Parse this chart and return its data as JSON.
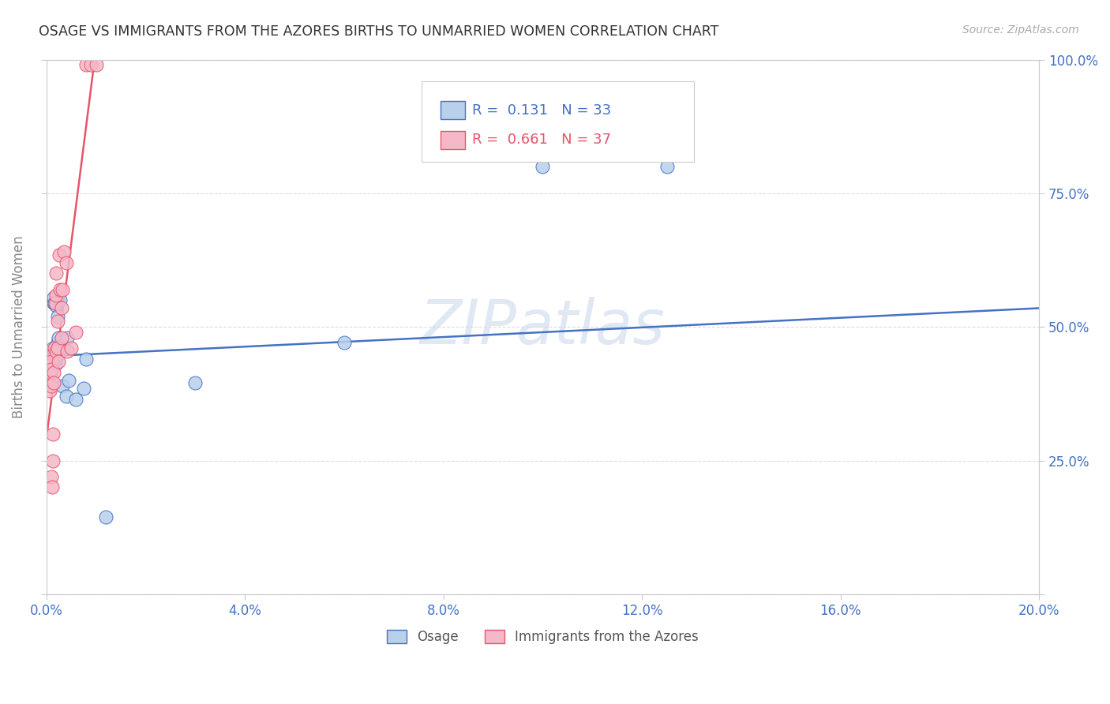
{
  "title": "OSAGE VS IMMIGRANTS FROM THE AZORES BIRTHS TO UNMARRIED WOMEN CORRELATION CHART",
  "source": "Source: ZipAtlas.com",
  "ylabel": "Births to Unmarried Women",
  "xlim": [
    0.0,
    0.2
  ],
  "ylim": [
    0.0,
    1.0
  ],
  "xticks": [
    0.0,
    0.04,
    0.08,
    0.12,
    0.16,
    0.2
  ],
  "yticks": [
    0.0,
    0.25,
    0.5,
    0.75,
    1.0
  ],
  "xticklabels": [
    "0.0%",
    "4.0%",
    "8.0%",
    "12.0%",
    "16.0%",
    "20.0%"
  ],
  "yticklabels": [
    "",
    "25.0%",
    "50.0%",
    "75.0%",
    "100.0%"
  ],
  "background_color": "#ffffff",
  "watermark": "ZIPatlas",
  "series": [
    {
      "name": "Osage",
      "R": 0.131,
      "N": 33,
      "marker_color": "#b8d0ea",
      "edge_color": "#4472c4",
      "line_color": "#4472c4",
      "x": [
        0.0008,
        0.0008,
        0.001,
        0.001,
        0.0012,
        0.0012,
        0.0014,
        0.0014,
        0.0015,
        0.0015,
        0.0016,
        0.0018,
        0.0018,
        0.002,
        0.0022,
        0.0022,
        0.0025,
        0.0025,
        0.0028,
        0.003,
        0.0032,
        0.0035,
        0.004,
        0.0042,
        0.0045,
        0.006,
        0.0075,
        0.008,
        0.012,
        0.03,
        0.06,
        0.1,
        0.125
      ],
      "y": [
        0.415,
        0.425,
        0.43,
        0.445,
        0.43,
        0.44,
        0.46,
        0.44,
        0.545,
        0.555,
        0.545,
        0.43,
        0.44,
        0.54,
        0.52,
        0.47,
        0.48,
        0.45,
        0.55,
        0.465,
        0.39,
        0.46,
        0.37,
        0.48,
        0.4,
        0.365,
        0.385,
        0.44,
        0.145,
        0.395,
        0.47,
        0.8,
        0.8
      ],
      "trend_x": [
        0.0,
        0.2
      ],
      "trend_y": [
        0.445,
        0.535
      ]
    },
    {
      "name": "Immigrants from the Azores",
      "R": 0.661,
      "N": 37,
      "marker_color": "#f4b8c8",
      "edge_color": "#e8546a",
      "line_color": "#e8546a",
      "x": [
        0.0005,
        0.0006,
        0.0007,
        0.0008,
        0.0008,
        0.0009,
        0.001,
        0.001,
        0.001,
        0.001,
        0.001,
        0.0012,
        0.0013,
        0.0014,
        0.0015,
        0.0015,
        0.0016,
        0.0018,
        0.0019,
        0.002,
        0.002,
        0.0022,
        0.0022,
        0.0025,
        0.0026,
        0.0028,
        0.003,
        0.003,
        0.0033,
        0.0035,
        0.004,
        0.0042,
        0.005,
        0.006,
        0.008,
        0.009,
        0.01
      ],
      "y": [
        0.415,
        0.42,
        0.38,
        0.43,
        0.415,
        0.445,
        0.43,
        0.435,
        0.42,
        0.39,
        0.22,
        0.2,
        0.25,
        0.3,
        0.415,
        0.395,
        0.46,
        0.545,
        0.56,
        0.6,
        0.455,
        0.51,
        0.46,
        0.435,
        0.635,
        0.57,
        0.535,
        0.48,
        0.57,
        0.64,
        0.62,
        0.455,
        0.46,
        0.49,
        0.99,
        0.99,
        0.99
      ],
      "trend_x": [
        0.0,
        0.01
      ],
      "trend_y": [
        0.29,
        1.02
      ]
    }
  ]
}
